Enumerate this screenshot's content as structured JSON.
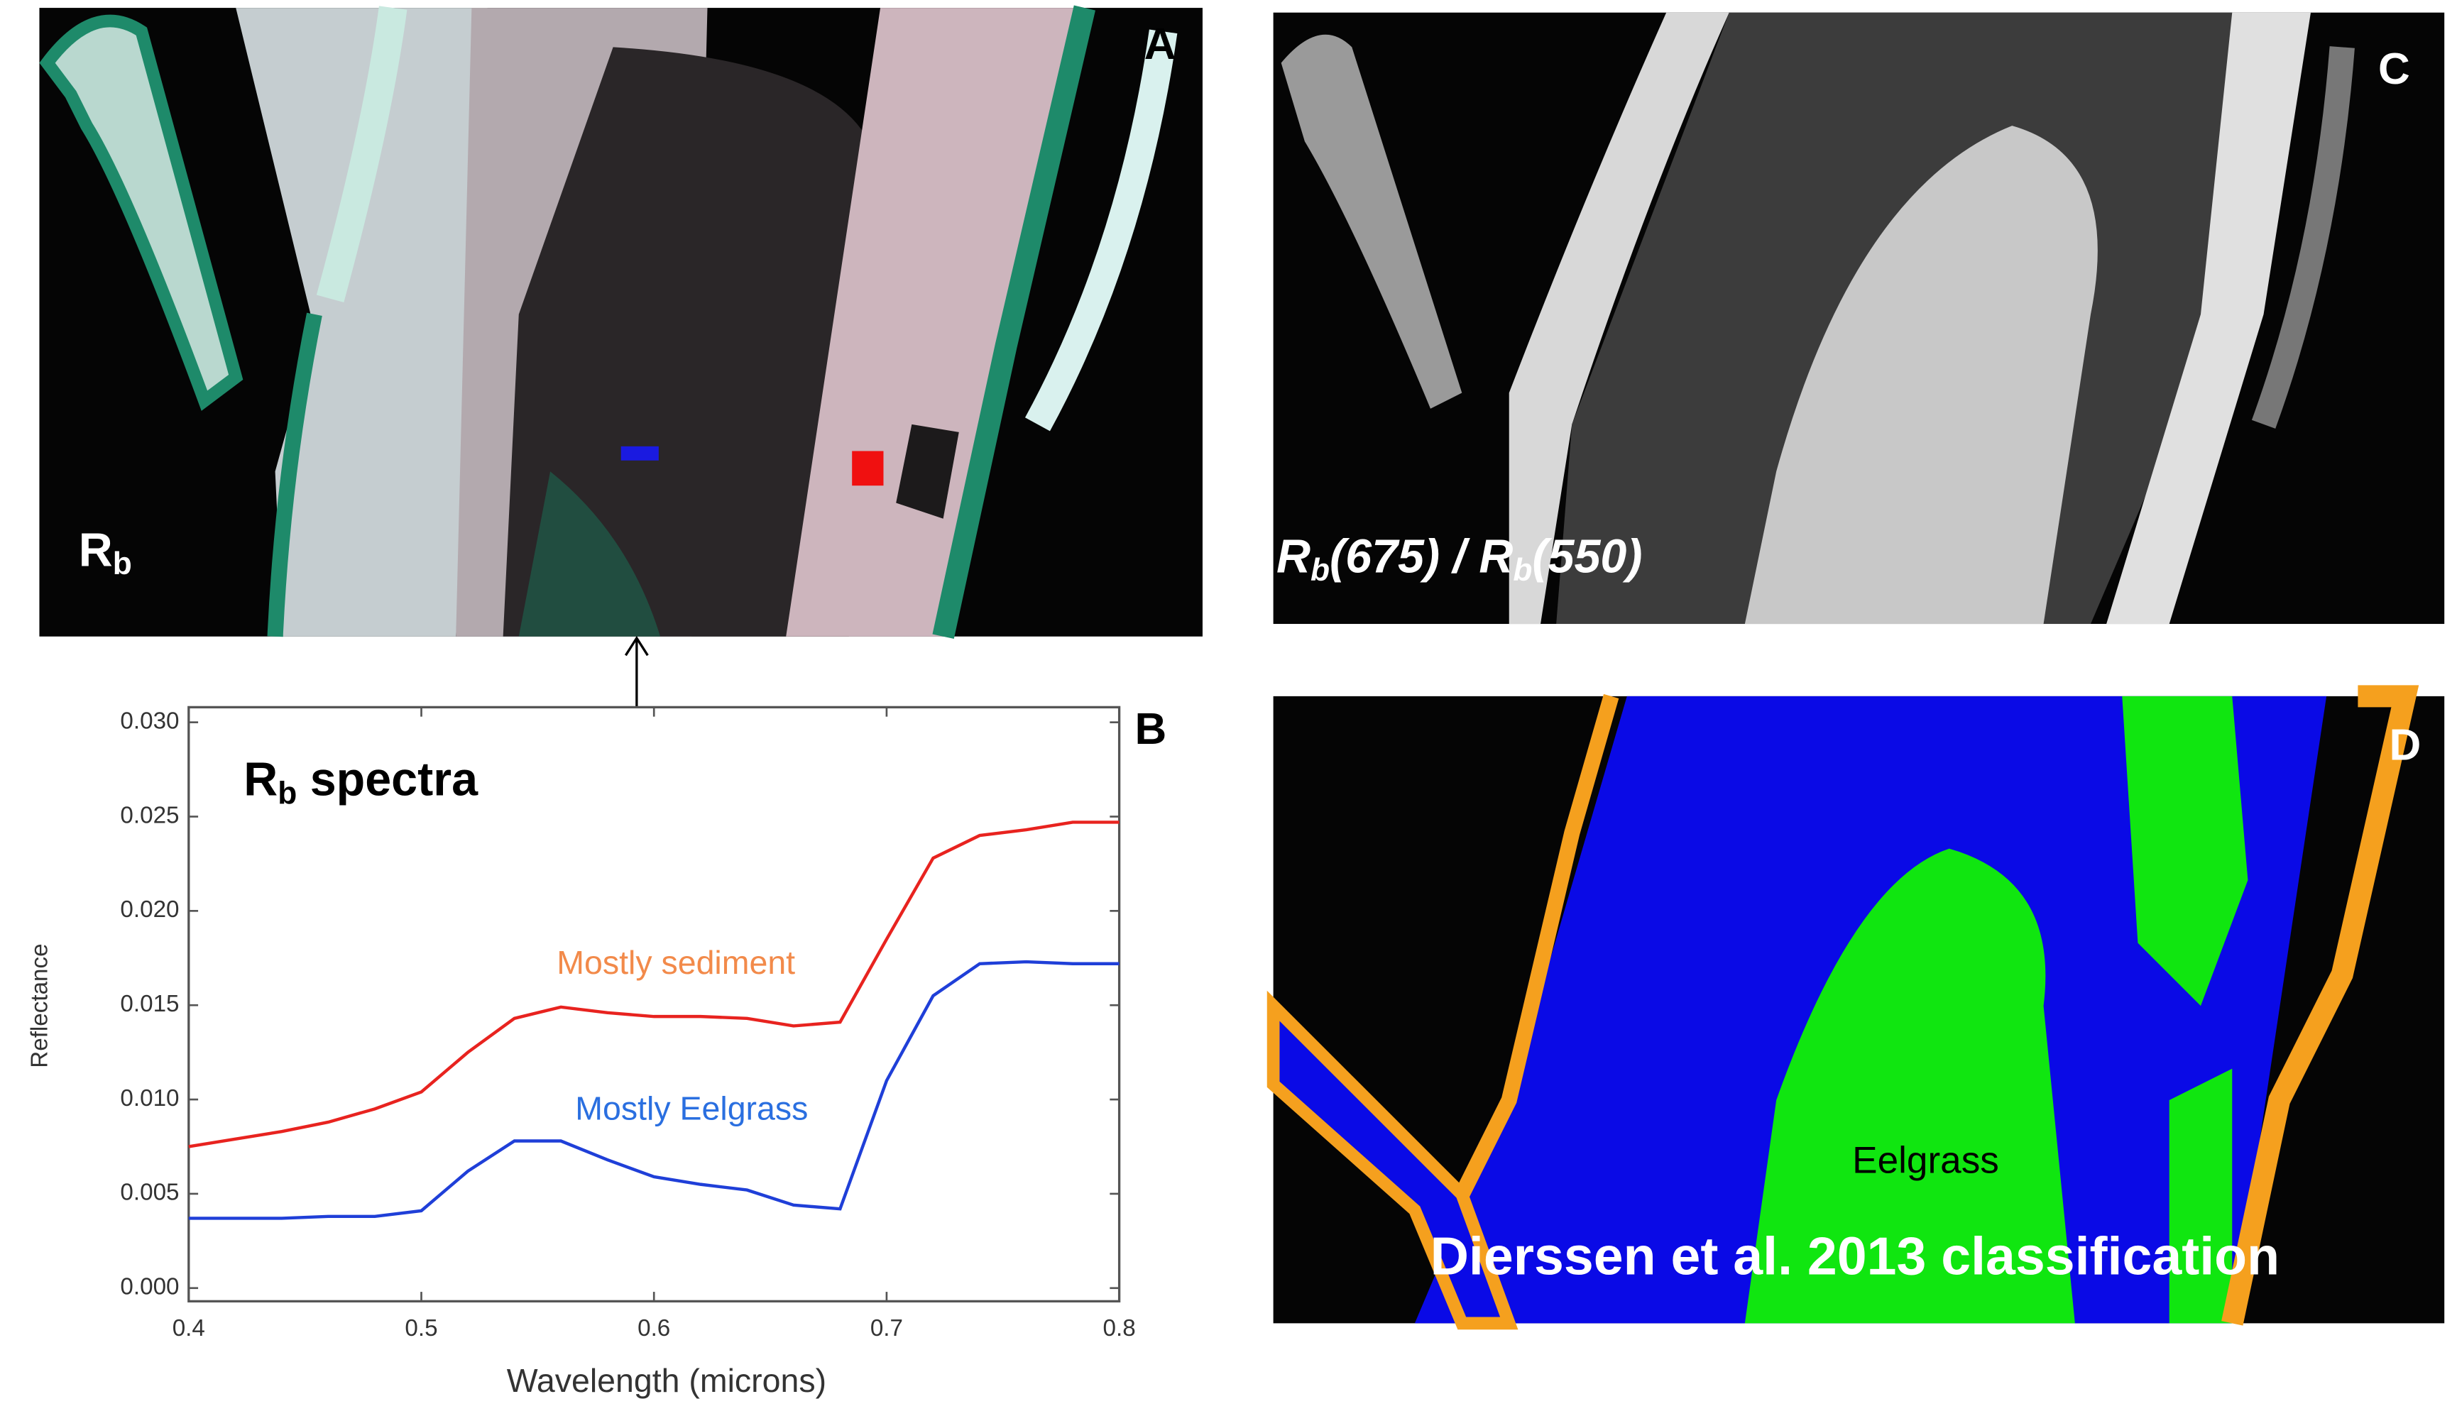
{
  "chart_data": {
    "type": "line",
    "panel_label": "B",
    "title": [
      "R",
      "b",
      " spectra"
    ],
    "x_label": "Wavelength (microns)",
    "y_label": "Reflectance",
    "x": [
      0.4,
      0.42,
      0.44,
      0.46,
      0.48,
      0.5,
      0.52,
      0.54,
      0.56,
      0.58,
      0.6,
      0.62,
      0.64,
      0.66,
      0.68,
      0.7,
      0.72,
      0.74,
      0.76,
      0.78,
      0.8
    ],
    "series": [
      {
        "name": "Mostly sediment",
        "color": "#e8231f",
        "label_color": "#f28a4a",
        "values": [
          0.0075,
          0.0079,
          0.0083,
          0.0088,
          0.0095,
          0.0104,
          0.0125,
          0.0143,
          0.0149,
          0.0146,
          0.0144,
          0.0144,
          0.0143,
          0.0139,
          0.0141,
          0.0185,
          0.0228,
          0.024,
          0.0243,
          0.0247,
          0.0247
        ]
      },
      {
        "name": "Mostly Eelgrass",
        "color": "#1f3fd8",
        "label_color": "#2a6fe0",
        "values": [
          0.0037,
          0.0037,
          0.0037,
          0.0038,
          0.0038,
          0.0041,
          0.0062,
          0.0078,
          0.0078,
          0.0068,
          0.0059,
          0.0055,
          0.0052,
          0.0044,
          0.0042,
          0.011,
          0.0155,
          0.0172,
          0.0173,
          0.0172,
          0.0172
        ]
      }
    ],
    "xlim": [
      0.4,
      0.8
    ],
    "xticks": [
      0.4,
      0.5,
      0.6,
      0.7,
      0.8
    ],
    "ylim": [
      -0.0007,
      0.0308
    ],
    "yticks": [
      {
        "value": 0,
        "label": "0.000"
      },
      {
        "value": 0.005,
        "label": "0.005"
      },
      {
        "value": 0.01,
        "label": "0.010"
      },
      {
        "value": 0.015,
        "label": "0.015"
      },
      {
        "value": 0.02,
        "label": "0.020"
      },
      {
        "value": 0.025,
        "label": "0.025"
      },
      {
        "value": 0.03,
        "label": "0.030"
      }
    ]
  },
  "panels": {
    "a": {
      "letter": "A",
      "label": [
        "R",
        "b"
      ]
    },
    "c": {
      "letter": "C",
      "label": [
        "R",
        "b",
        "(675) / ",
        "R",
        "b",
        "(550)"
      ]
    },
    "d": {
      "letter": "D",
      "class_label": "Eelgrass",
      "caption": "Dierssen et al. 2013 classification"
    }
  }
}
